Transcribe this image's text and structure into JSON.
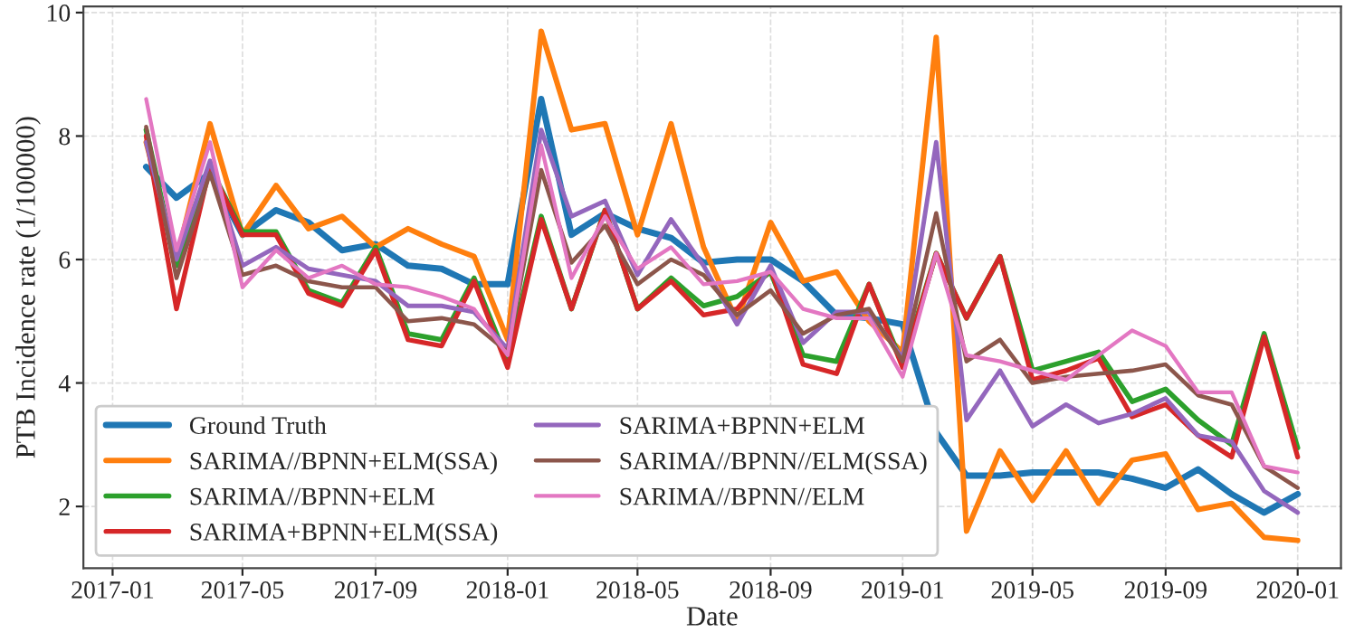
{
  "chart_data": {
    "type": "line",
    "xlabel": "Date",
    "ylabel": "PTB Incidence rate (1/100000)",
    "x": [
      "2017-02",
      "2017-03",
      "2017-04",
      "2017-05",
      "2017-06",
      "2017-07",
      "2017-08",
      "2017-09",
      "2017-10",
      "2017-11",
      "2017-12",
      "2018-01",
      "2018-02",
      "2018-03",
      "2018-04",
      "2018-05",
      "2018-06",
      "2018-07",
      "2018-08",
      "2018-09",
      "2018-10",
      "2018-11",
      "2018-12",
      "2019-01",
      "2019-02",
      "2019-03",
      "2019-04",
      "2019-05",
      "2019-06",
      "2019-07",
      "2019-08",
      "2019-09",
      "2019-10",
      "2019-11",
      "2019-12",
      "2020-01"
    ],
    "series": [
      {
        "name": "Ground Truth",
        "color": "#1f77b4",
        "values": [
          7.5,
          7.0,
          7.4,
          6.4,
          6.8,
          6.6,
          6.15,
          6.25,
          5.9,
          5.85,
          5.6,
          5.6,
          8.6,
          6.4,
          6.75,
          6.5,
          6.35,
          5.95,
          6.0,
          6.0,
          5.65,
          5.1,
          5.05,
          4.95,
          3.2,
          2.5,
          2.5,
          2.55,
          2.55,
          2.55,
          2.45,
          2.3,
          2.6,
          2.2,
          1.9,
          2.2
        ]
      },
      {
        "name": "SARIMA//BPNN+ELM(SSA)",
        "color": "#ff7f0e",
        "values": [
          7.9,
          6.0,
          8.2,
          6.4,
          7.2,
          6.5,
          6.7,
          6.2,
          6.5,
          6.25,
          6.05,
          4.7,
          9.7,
          8.1,
          8.2,
          6.4,
          8.2,
          6.2,
          5.0,
          6.6,
          5.65,
          5.8,
          5.0,
          4.5,
          9.6,
          1.6,
          2.9,
          2.1,
          2.9,
          2.05,
          2.75,
          2.85,
          1.95,
          2.05,
          1.5,
          1.45
        ]
      },
      {
        "name": "SARIMA//BPNN+ELM",
        "color": "#2ca02c",
        "values": [
          8.1,
          5.9,
          7.5,
          6.45,
          6.45,
          5.5,
          5.3,
          6.2,
          4.8,
          4.7,
          5.7,
          4.35,
          6.7,
          5.2,
          6.8,
          5.2,
          5.7,
          5.25,
          5.4,
          5.8,
          4.45,
          4.35,
          5.6,
          4.3,
          6.1,
          5.05,
          6.05,
          4.2,
          4.35,
          4.5,
          3.7,
          3.9,
          3.4,
          3.0,
          4.8,
          2.95
        ]
      },
      {
        "name": "SARIMA+BPNN+ELM(SSA)",
        "color": "#d62728",
        "values": [
          8.0,
          5.2,
          7.5,
          6.4,
          6.4,
          5.45,
          5.25,
          6.15,
          4.7,
          4.6,
          5.65,
          4.25,
          6.65,
          5.2,
          6.8,
          5.2,
          5.65,
          5.1,
          5.2,
          5.85,
          4.3,
          4.15,
          5.6,
          4.25,
          6.1,
          5.05,
          6.05,
          4.05,
          4.2,
          4.4,
          3.45,
          3.65,
          3.15,
          2.8,
          4.75,
          2.8
        ]
      },
      {
        "name": "SARIMA+BPNN+ELM",
        "color": "#9467bd",
        "values": [
          7.9,
          6.0,
          7.6,
          5.9,
          6.2,
          5.85,
          5.75,
          5.65,
          5.25,
          5.25,
          5.15,
          4.55,
          8.1,
          6.7,
          6.95,
          5.75,
          6.65,
          5.9,
          4.95,
          5.9,
          4.65,
          5.15,
          5.15,
          4.4,
          7.9,
          3.4,
          4.2,
          3.3,
          3.65,
          3.35,
          3.5,
          3.75,
          3.15,
          3.05,
          2.25,
          1.9
        ]
      },
      {
        "name": "SARIMA//BPNN//ELM(SSA)",
        "color": "#8c564b",
        "values": [
          8.15,
          5.7,
          7.4,
          5.75,
          5.9,
          5.65,
          5.55,
          5.55,
          5.0,
          5.05,
          4.95,
          4.5,
          7.45,
          5.95,
          6.55,
          5.6,
          6.0,
          5.75,
          5.1,
          5.5,
          4.8,
          5.1,
          5.2,
          4.35,
          6.75,
          4.35,
          4.7,
          4.0,
          4.1,
          4.15,
          4.2,
          4.3,
          3.8,
          3.65,
          2.65,
          2.3
        ]
      },
      {
        "name": "SARIMA//BPNN//ELM",
        "color": "#e377c2",
        "values": [
          8.6,
          6.15,
          7.9,
          5.55,
          6.15,
          5.7,
          5.9,
          5.6,
          5.55,
          5.4,
          5.2,
          4.45,
          7.85,
          5.7,
          6.7,
          5.85,
          6.2,
          5.6,
          5.65,
          5.8,
          5.2,
          5.05,
          5.05,
          4.1,
          6.1,
          4.45,
          4.35,
          4.2,
          4.05,
          4.45,
          4.85,
          4.6,
          3.85,
          3.85,
          2.65,
          2.55
        ]
      }
    ],
    "xlim": [
      "2016-12-05",
      "2020-02-10"
    ],
    "xticks": [
      "2017-01",
      "2017-05",
      "2017-09",
      "2018-01",
      "2018-05",
      "2018-09",
      "2019-01",
      "2019-05",
      "2019-09",
      "2020-01"
    ],
    "ylim": [
      1.0,
      10.1
    ],
    "yticks": [
      2,
      4,
      6,
      8,
      10
    ],
    "grid": true,
    "legend": "bottom left",
    "line_style": "solid",
    "marker": "none"
  }
}
